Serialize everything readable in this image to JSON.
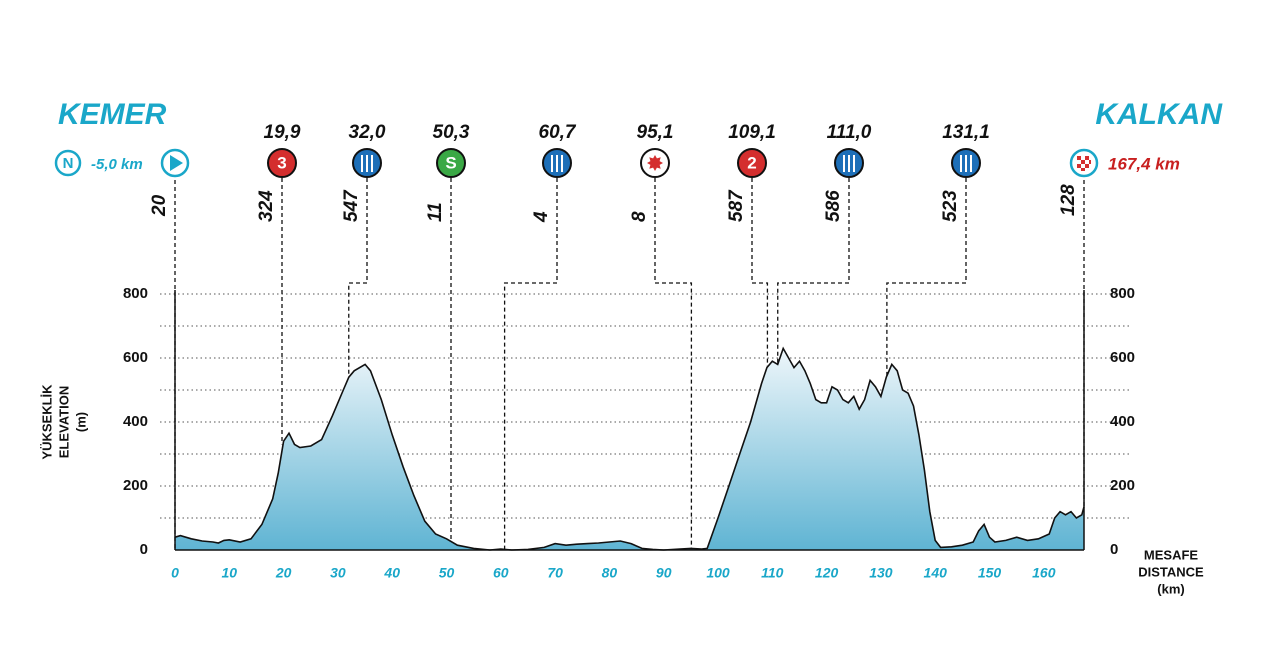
{
  "chart_data": {
    "type": "area",
    "start": {
      "name": "KEMER",
      "badge": "N",
      "distance": "-5,0 km",
      "elevation": 20
    },
    "finish": {
      "name": "KALKAN",
      "distance": "167,4 km",
      "elevation": 128
    },
    "waypoints": [
      {
        "km": {
          "value": 19.9,
          "label": "19,9"
        },
        "icon": "kom",
        "badge": "3",
        "elevation": 324
      },
      {
        "km": {
          "value": 32.0,
          "label": "32,0"
        },
        "icon": "feed",
        "elevation": 547
      },
      {
        "km": {
          "value": 50.3,
          "label": "50,3"
        },
        "icon": "sprint",
        "badge": "S",
        "elevation": 11
      },
      {
        "km": {
          "value": 60.7,
          "label": "60,7"
        },
        "icon": "feed",
        "elevation": 4
      },
      {
        "km": {
          "value": 95.1,
          "label": "95,1"
        },
        "icon": "star",
        "elevation": 8
      },
      {
        "km": {
          "value": 109.1,
          "label": "109,1"
        },
        "icon": "kom",
        "badge": "2",
        "elevation": 587
      },
      {
        "km": {
          "value": 111.0,
          "label": "111,0"
        },
        "icon": "feed",
        "elevation": 586
      },
      {
        "km": {
          "value": 131.1,
          "label": "131,1"
        },
        "icon": "feed",
        "elevation": 523
      }
    ],
    "ylabel": [
      "YÜKSEKLİK",
      "ELEVATION",
      "(m)"
    ],
    "xlabel": [
      "MESAFE",
      "DISTANCE",
      "(km)"
    ],
    "xlim": [
      0,
      167.4
    ],
    "ylim": [
      0,
      800
    ],
    "xticks": [
      0,
      10,
      20,
      30,
      40,
      50,
      60,
      70,
      80,
      90,
      100,
      110,
      120,
      130,
      140,
      150,
      160
    ],
    "yticks": [
      0,
      200,
      400,
      600,
      800
    ],
    "minor_yticks": [
      100,
      300,
      500,
      700
    ],
    "x": [
      0,
      1,
      3,
      5,
      7,
      8,
      9,
      10,
      12,
      14,
      16,
      18,
      19,
      20,
      21,
      22,
      23,
      25,
      27,
      29,
      31,
      32,
      33,
      35,
      36,
      38,
      40,
      42,
      44,
      46,
      48,
      50,
      52,
      55,
      58,
      60,
      62,
      65,
      68,
      70,
      72,
      74,
      76,
      78,
      80,
      82,
      84,
      86,
      88,
      90,
      93,
      95,
      97,
      98,
      100,
      102,
      104,
      106,
      108,
      109,
      110,
      111,
      112,
      113,
      114,
      115,
      116,
      117,
      118,
      119,
      120,
      121,
      122,
      123,
      124,
      125,
      126,
      127,
      128,
      129,
      130,
      131,
      132,
      133,
      134,
      135,
      136,
      137,
      138,
      139,
      140,
      141,
      143,
      145,
      147,
      148,
      149,
      150,
      151,
      153,
      155,
      157,
      159,
      161,
      162,
      163,
      164,
      165,
      166,
      167,
      167.4
    ],
    "values": [
      40,
      45,
      35,
      28,
      25,
      22,
      30,
      32,
      25,
      35,
      80,
      160,
      240,
      340,
      365,
      330,
      320,
      325,
      345,
      420,
      500,
      540,
      560,
      580,
      560,
      470,
      360,
      260,
      170,
      90,
      50,
      35,
      15,
      5,
      0,
      3,
      0,
      2,
      8,
      20,
      15,
      18,
      20,
      22,
      25,
      28,
      20,
      5,
      2,
      0,
      3,
      5,
      3,
      5,
      100,
      200,
      300,
      400,
      520,
      570,
      590,
      580,
      630,
      600,
      570,
      590,
      560,
      520,
      470,
      460,
      460,
      510,
      500,
      470,
      460,
      480,
      440,
      470,
      530,
      510,
      480,
      540,
      580,
      560,
      500,
      490,
      450,
      360,
      250,
      120,
      30,
      8,
      10,
      15,
      25,
      60,
      80,
      40,
      25,
      30,
      40,
      30,
      35,
      50,
      100,
      120,
      110,
      120,
      100,
      110,
      135
    ],
    "line_color": "#111111",
    "fill_top": "#eef6fa",
    "fill_bottom": "#5fb4d3"
  }
}
